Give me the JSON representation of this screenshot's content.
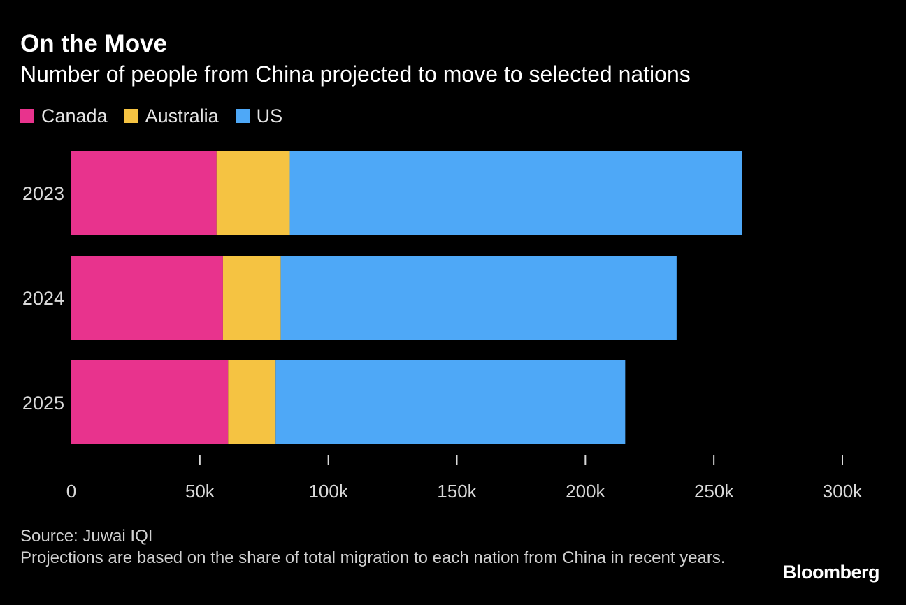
{
  "header": {
    "title": "On the Move",
    "subtitle": "Number of people from China projected to move to selected nations"
  },
  "legend": [
    {
      "label": "Canada",
      "color": "#e8338d"
    },
    {
      "label": "Australia",
      "color": "#f5c342"
    },
    {
      "label": "US",
      "color": "#4ea8f7"
    }
  ],
  "footer": {
    "source": "Source: Juwai IQI",
    "note": "Projections are based on the share of total migration to each nation from China in recent years.",
    "brand": "Bloomberg"
  },
  "chart_data": {
    "type": "bar",
    "orientation": "horizontal",
    "stacked": true,
    "title": "On the Move",
    "subtitle": "Number of people from China projected to move to selected nations",
    "categories": [
      "2023",
      "2024",
      "2025"
    ],
    "series": [
      {
        "name": "Canada",
        "color": "#e8338d",
        "values": [
          56500,
          59000,
          61000
        ]
      },
      {
        "name": "Australia",
        "color": "#f5c342",
        "values": [
          28500,
          22500,
          18500
        ]
      },
      {
        "name": "US",
        "color": "#4ea8f7",
        "values": [
          176000,
          154000,
          136000
        ]
      }
    ],
    "xlim": [
      0,
      300000
    ],
    "xticks": [
      0,
      50000,
      100000,
      150000,
      200000,
      250000,
      300000
    ],
    "xtick_labels": [
      "0",
      "50k",
      "100k",
      "150k",
      "200k",
      "250k",
      "300k"
    ],
    "xlabel": "",
    "ylabel": "",
    "legend_position": "top-left",
    "grid": false
  }
}
